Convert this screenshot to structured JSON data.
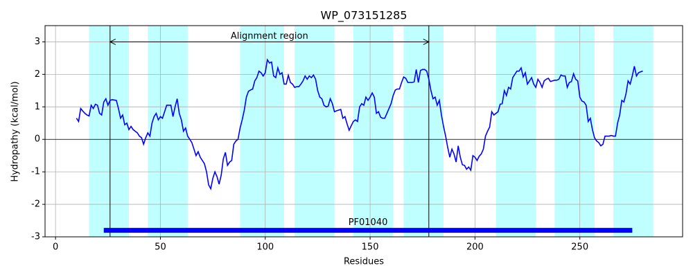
{
  "chart_data": {
    "type": "line",
    "title": "WP_073151285",
    "x_label": "Residues",
    "y_label": "Hydropathy (kcal/mol)",
    "x": [
      10,
      11,
      12,
      13,
      14,
      15,
      16,
      17,
      18,
      19,
      20,
      21,
      22,
      23,
      24,
      25,
      26,
      27,
      28,
      29,
      30,
      31,
      32,
      33,
      34,
      35,
      36,
      37,
      38,
      39,
      40,
      41,
      42,
      43,
      44,
      45,
      46,
      47,
      48,
      49,
      50,
      51,
      52,
      53,
      54,
      55,
      56,
      57,
      58,
      59,
      60,
      61,
      62,
      63,
      64,
      65,
      66,
      67,
      68,
      69,
      70,
      71,
      72,
      73,
      74,
      75,
      76,
      77,
      78,
      79,
      80,
      81,
      82,
      83,
      84,
      85,
      86,
      87,
      88,
      89,
      90,
      91,
      92,
      93,
      94,
      95,
      96,
      97,
      98,
      99,
      100,
      101,
      102,
      103,
      104,
      105,
      106,
      107,
      108,
      109,
      110,
      111,
      112,
      113,
      114,
      115,
      116,
      117,
      118,
      119,
      120,
      121,
      122,
      123,
      124,
      125,
      126,
      127,
      128,
      129,
      130,
      131,
      132,
      133,
      134,
      135,
      136,
      137,
      138,
      139,
      140,
      141,
      142,
      143,
      144,
      145,
      146,
      147,
      148,
      149,
      150,
      151,
      152,
      153,
      154,
      155,
      156,
      157,
      158,
      159,
      160,
      161,
      162,
      163,
      164,
      165,
      166,
      167,
      168,
      169,
      170,
      171,
      172,
      173,
      174,
      175,
      176,
      177,
      178,
      179,
      180,
      181,
      182,
      183,
      184,
      185,
      186,
      187,
      188,
      189,
      190,
      191,
      192,
      193,
      194,
      195,
      196,
      197,
      198,
      199,
      200,
      201,
      202,
      203,
      204,
      205,
      206,
      207,
      208,
      209,
      210,
      211,
      212,
      213,
      214,
      215,
      216,
      217,
      218,
      219,
      220,
      221,
      222,
      223,
      224,
      225,
      226,
      227,
      228,
      229,
      230,
      231,
      232,
      233,
      234,
      235,
      236,
      237,
      238,
      239,
      240,
      241,
      242,
      243,
      244,
      245,
      246,
      247,
      248,
      249,
      250,
      251,
      252,
      253,
      254,
      255,
      256,
      257,
      258,
      259,
      260,
      261,
      262,
      263,
      264,
      265,
      266,
      267,
      268,
      269,
      270,
      271,
      272,
      273,
      274,
      275,
      276,
      277,
      278,
      279,
      280
    ],
    "values": [
      0.65,
      0.55,
      0.95,
      0.87,
      0.8,
      0.75,
      0.72,
      1.05,
      0.95,
      1.08,
      1.05,
      0.8,
      0.75,
      1.15,
      1.25,
      1.05,
      1.2,
      1.22,
      1.21,
      1.2,
      0.95,
      0.65,
      0.75,
      0.45,
      0.5,
      0.3,
      0.4,
      0.3,
      0.25,
      0.2,
      0.1,
      0.05,
      -0.15,
      0.05,
      0.2,
      0.1,
      0.5,
      0.7,
      0.8,
      0.6,
      0.7,
      0.65,
      0.85,
      1.05,
      1.05,
      1.05,
      0.7,
      1.0,
      1.25,
      0.8,
      0.6,
      0.25,
      0.35,
      0.1,
      0,
      -0.1,
      -0.3,
      -0.5,
      -0.38,
      -0.55,
      -0.65,
      -0.75,
      -1.0,
      -1.4,
      -1.52,
      -1.2,
      -1.0,
      -1.15,
      -1.38,
      -1.1,
      -0.6,
      -0.4,
      -0.8,
      -0.7,
      -0.65,
      -0.15,
      -0.05,
      0,
      0.35,
      0.6,
      0.9,
      1.3,
      1.48,
      1.52,
      1.55,
      1.8,
      1.9,
      2.1,
      2.05,
      1.95,
      2.05,
      2.45,
      2.35,
      2.38,
      1.95,
      1.9,
      2.2,
      2.0,
      2.05,
      1.7,
      1.7,
      1.97,
      1.75,
      1.7,
      1.6,
      1.62,
      1.62,
      1.7,
      1.8,
      1.95,
      1.85,
      1.95,
      1.9,
      1.98,
      1.85,
      1.5,
      1.3,
      1.25,
      1.05,
      1.0,
      1.02,
      1.25,
      1.1,
      0.85,
      0.88,
      0.9,
      0.92,
      0.65,
      0.7,
      0.48,
      0.28,
      0.42,
      0.55,
      0.6,
      0.55,
      1.0,
      1.1,
      1.05,
      1.3,
      1.2,
      1.3,
      1.43,
      1.3,
      0.8,
      0.85,
      0.68,
      0.65,
      0.65,
      0.8,
      0.95,
      1.1,
      1.35,
      1.52,
      1.55,
      1.55,
      1.75,
      1.92,
      1.88,
      1.75,
      1.75,
      1.75,
      1.77,
      2.15,
      1.75,
      2.12,
      2.15,
      2.15,
      2.1,
      1.85,
      1.5,
      1.25,
      1.3,
      1.05,
      1.2,
      0.75,
      0.4,
      0.1,
      -0.25,
      -0.55,
      -0.3,
      -0.45,
      -0.7,
      -0.2,
      -0.55,
      -0.78,
      -0.8,
      -0.92,
      -0.85,
      -0.95,
      -0.5,
      -0.55,
      -0.65,
      -0.52,
      -0.45,
      -0.3,
      0.1,
      0.25,
      0.38,
      0.85,
      0.75,
      0.8,
      0.85,
      1.08,
      1.1,
      1.5,
      1.35,
      1.6,
      1.55,
      1.9,
      2.0,
      2.1,
      2.1,
      2.2,
      1.92,
      2.05,
      1.7,
      1.8,
      1.9,
      1.7,
      1.6,
      1.85,
      1.75,
      1.6,
      1.8,
      1.85,
      1.88,
      1.78,
      1.8,
      1.82,
      1.82,
      1.85,
      1.98,
      1.95,
      1.95,
      1.6,
      1.75,
      1.78,
      2.02,
      1.85,
      1.8,
      1.3,
      1.18,
      1.15,
      1.05,
      0.55,
      0.65,
      0.3,
      0.05,
      -0.05,
      -0.1,
      -0.2,
      -0.15,
      0.1,
      0.1,
      0.1,
      0.12,
      0.1,
      0.1,
      0.5,
      0.75,
      1.2,
      1.15,
      1.4,
      1.8,
      1.7,
      1.95,
      2.25,
      1.95,
      2.05,
      2.08,
      2.1
    ],
    "color": "#0000ff",
    "xlim": [
      -5,
      299
    ],
    "ylim": [
      -3,
      3.5
    ],
    "xticks": [
      0,
      50,
      100,
      150,
      200,
      250
    ],
    "yticks": [
      -3,
      -2,
      -1,
      0,
      1,
      2,
      3
    ],
    "grid": true,
    "hline": 0,
    "span_color": "#bfffff",
    "spans": [
      {
        "start": 16,
        "end": 35
      },
      {
        "start": 44,
        "end": 63
      },
      {
        "start": 88,
        "end": 109
      },
      {
        "start": 114,
        "end": 133
      },
      {
        "start": 142,
        "end": 161
      },
      {
        "start": 166,
        "end": 185
      },
      {
        "start": 210,
        "end": 229
      },
      {
        "start": 238,
        "end": 257
      },
      {
        "start": 266,
        "end": 285
      }
    ],
    "vlines": [
      26,
      178
    ],
    "arrow": {
      "start": 26,
      "end": 178,
      "y": 3,
      "label": "Alignment region"
    },
    "domain": {
      "name": "PF01040",
      "start": 23,
      "end": 275,
      "y": -2.8,
      "color": "#0000ff"
    }
  }
}
